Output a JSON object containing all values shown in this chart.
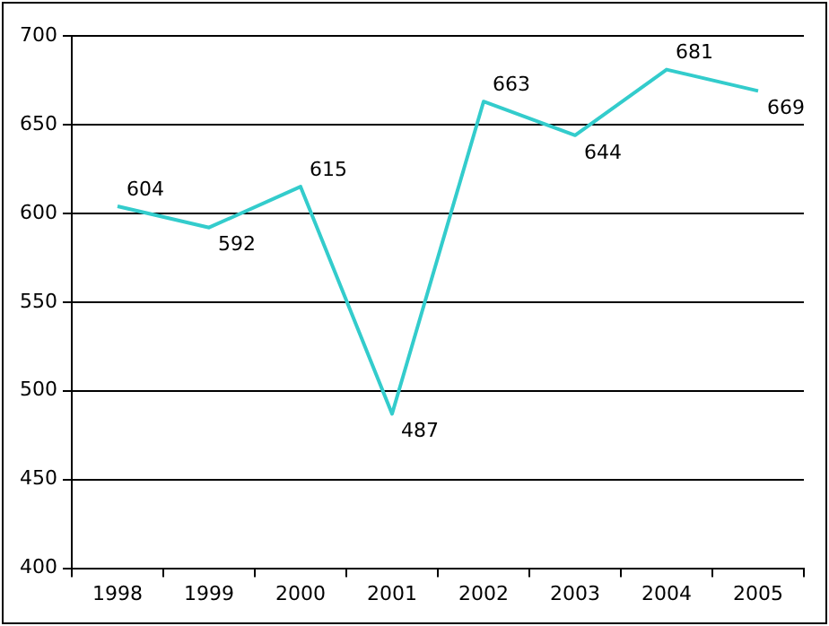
{
  "chart_data": {
    "type": "line",
    "categories": [
      "1998",
      "1999",
      "2000",
      "2001",
      "2002",
      "2003",
      "2004",
      "2005"
    ],
    "series": [
      {
        "color": "#33cccc",
        "values": [
          604,
          592,
          615,
          487,
          663,
          644,
          681,
          669
        ]
      }
    ],
    "ylim": [
      400,
      700
    ],
    "yticks": [
      400,
      450,
      500,
      550,
      600,
      650,
      700
    ],
    "grid": "y",
    "legend": false,
    "marker": "none",
    "line_style": "solid",
    "data_labels": true
  }
}
